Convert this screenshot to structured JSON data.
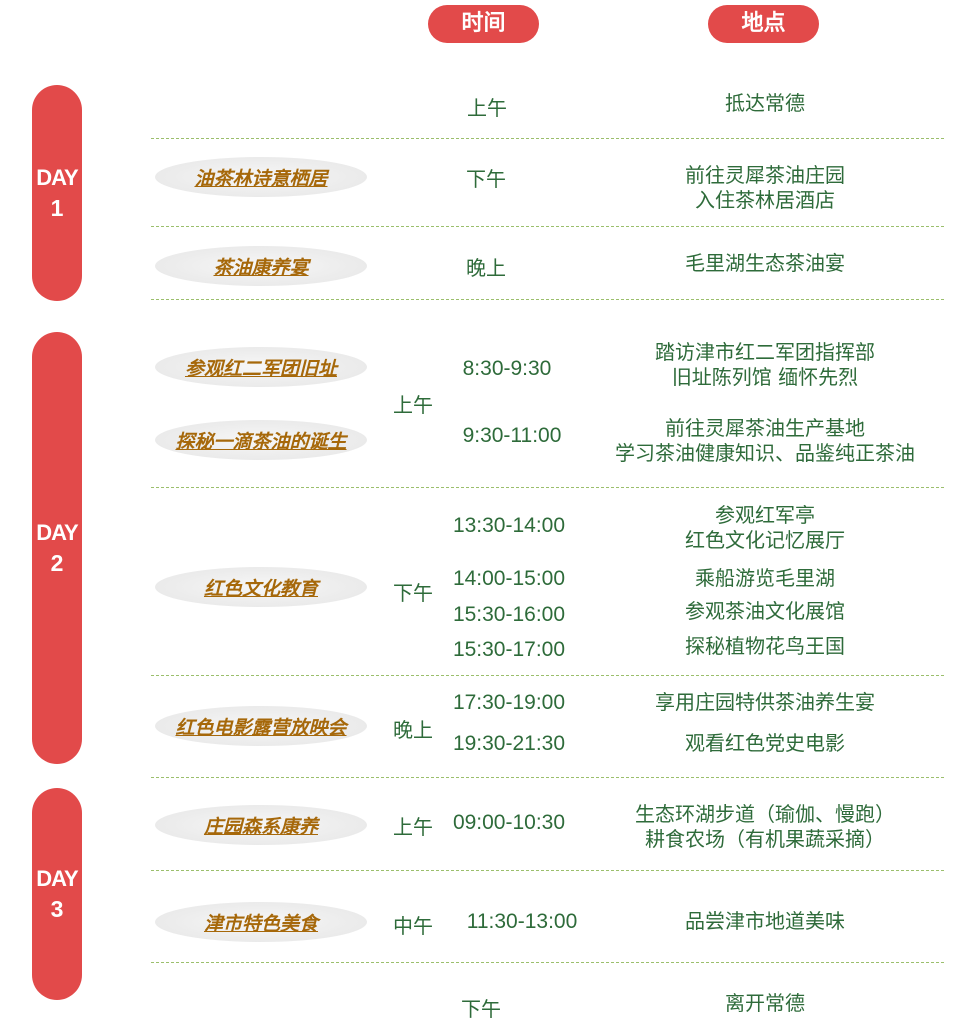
{
  "header": {
    "time_label": "时间",
    "place_label": "地点"
  },
  "days": [
    {
      "label": "DAY",
      "number": "1"
    },
    {
      "label": "DAY",
      "number": "2"
    },
    {
      "label": "DAY",
      "number": "3"
    }
  ],
  "themes": [
    "油茶林诗意栖居",
    "茶油康养宴",
    "参观红二军团旧址",
    "探秘一滴茶油的诞生",
    "红色文化教育",
    "红色电影露营放映会",
    "庄园森系康养",
    "津市特色美食"
  ],
  "periods": {
    "d1_morning": "上午",
    "d1_afternoon": "下午",
    "d1_evening": "晚上",
    "d2_morning": "上午",
    "d2_afternoon": "下午",
    "d2_evening": "晚上",
    "d3_morning": "上午",
    "d3_noon": "中午",
    "d3_afternoon": "下午"
  },
  "times": {
    "t1": "8:30-9:30",
    "t2": "9:30-11:00",
    "t3": "13:30-14:00",
    "t4": "14:00-15:00",
    "t5": "15:30-16:00",
    "t6": "15:30-17:00",
    "t7": "17:30-19:00",
    "t8": "19:30-21:30",
    "t9": "09:00-10:30",
    "t10": "11:30-13:00"
  },
  "places": {
    "p1": "抵达常德",
    "p2a": "前往灵犀茶油庄园",
    "p2b": "入住茶林居酒店",
    "p3": "毛里湖生态茶油宴",
    "p4a": "踏访津市红二军团指挥部",
    "p4b": "旧址陈列馆  缅怀先烈",
    "p5a": "前往灵犀茶油生产基地",
    "p5b": "学习茶油健康知识、品鉴纯正茶油",
    "p6a": "参观红军亭",
    "p6b": "红色文化记忆展厅",
    "p7": "乘船游览毛里湖",
    "p8": "参观茶油文化展馆",
    "p9": "探秘植物花鸟王国",
    "p10": "享用庄园特供茶油养生宴",
    "p11": "观看红色党史电影",
    "p12a": "生态环湖步道（瑜伽、慢跑）",
    "p12b": "耕食农场（有机果蔬采摘）",
    "p13": "品尝津市地道美味",
    "p14": "离开常德"
  },
  "colors": {
    "accent_red": "#e24a4a",
    "text_green": "#2e6b3a",
    "theme_gold": "#a6680a",
    "divider_green": "#9bbf6c"
  }
}
